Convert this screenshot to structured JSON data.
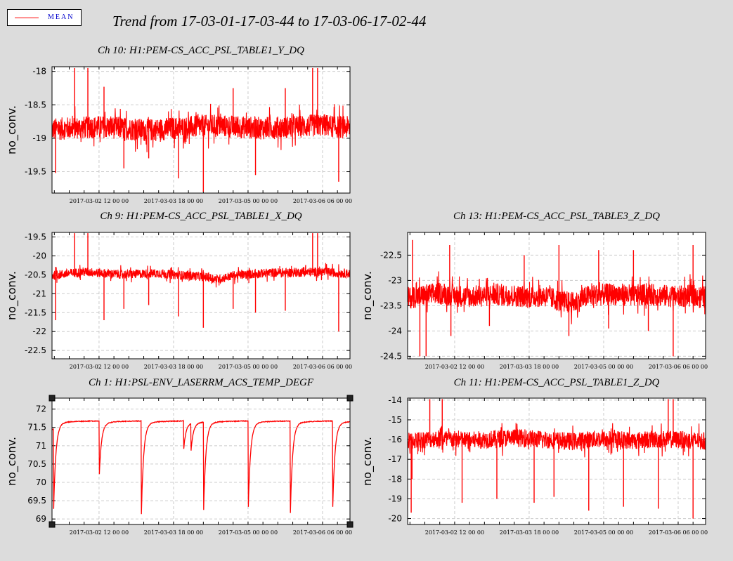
{
  "title": "Trend from 17-03-01-17-03-44 to 17-03-06-17-02-44",
  "legend": {
    "label": "MEAN",
    "color": "#ff0000"
  },
  "colors": {
    "background": "#dcdcdc",
    "plot_background": "#ffffff",
    "trace": "#ff0000",
    "grid": "#cccccc"
  },
  "chart_data": [
    {
      "type": "line",
      "title": "Ch 10: H1:PEM-CS_ACC_PSL_TABLE1_Y_DQ",
      "xlabel": "",
      "ylabel": "no_conv.",
      "x_range": [
        "2017-03-01 17:03:44",
        "2017-03-06 17:02:44"
      ],
      "x_ticks": [
        "2017-03-02 12:00:00",
        "2017-03-03 18:00:00",
        "2017-03-05 00:00:00",
        "2017-03-06 06:00:00"
      ],
      "ylim": [
        -19.82,
        -17.93
      ],
      "y_ticks": [
        -18,
        -18.5,
        -19,
        -19.5
      ],
      "grid": true,
      "series": [
        {
          "name": "MEAN",
          "baseline": -18.87,
          "band_halfwidth": 0.17,
          "x": [
            "2017-03-01 17:03:44",
            "2017-03-01 23:00:00",
            "2017-03-02 06:00:00",
            "2017-03-02 12:00:00",
            "2017-03-02 18:00:00",
            "2017-03-03 00:00:00",
            "2017-03-03 06:00:00",
            "2017-03-03 12:00:00",
            "2017-03-03 18:00:00",
            "2017-03-04 00:00:00",
            "2017-03-04 06:00:00",
            "2017-03-04 12:00:00",
            "2017-03-04 18:00:00",
            "2017-03-05 00:00:00",
            "2017-03-05 06:00:00",
            "2017-03-05 12:00:00",
            "2017-03-05 18:00:00",
            "2017-03-06 00:00:00",
            "2017-03-06 06:00:00",
            "2017-03-06 12:00:00",
            "2017-03-06 17:02:44"
          ],
          "values": [
            -18.87,
            -18.85,
            -18.84,
            -18.83,
            -18.84,
            -18.86,
            -18.88,
            -18.87,
            -18.85,
            -18.84,
            -18.82,
            -18.81,
            -18.83,
            -18.84,
            -18.85,
            -18.84,
            -18.83,
            -18.82,
            -18.8,
            -18.83,
            -18.84
          ],
          "spikes": [
            {
              "x": "2017-03-01 18:30:00",
              "y": -19.52
            },
            {
              "x": "2017-03-02 02:10:00",
              "y": -17.95
            },
            {
              "x": "2017-03-02 07:30:00",
              "y": -17.95
            },
            {
              "x": "2017-03-02 14:00:00",
              "y": -18.23
            },
            {
              "x": "2017-03-02 22:00:00",
              "y": -19.45
            },
            {
              "x": "2017-03-03 08:00:00",
              "y": -19.3
            },
            {
              "x": "2017-03-03 20:00:00",
              "y": -19.6
            },
            {
              "x": "2017-03-04 06:00:00",
              "y": -19.8
            },
            {
              "x": "2017-03-04 18:00:00",
              "y": -18.25
            },
            {
              "x": "2017-03-05 03:00:00",
              "y": -19.55
            },
            {
              "x": "2017-03-05 15:00:00",
              "y": -18.25
            },
            {
              "x": "2017-03-06 02:00:00",
              "y": -17.95
            },
            {
              "x": "2017-03-06 04:00:00",
              "y": -17.95
            },
            {
              "x": "2017-03-06 12:30:00",
              "y": -19.65
            }
          ]
        }
      ]
    },
    {
      "type": "line",
      "title": "Ch 9: H1:PEM-CS_ACC_PSL_TABLE1_X_DQ",
      "xlabel": "",
      "ylabel": "no_conv.",
      "x_range": [
        "2017-03-01 17:03:44",
        "2017-03-06 17:02:44"
      ],
      "x_ticks": [
        "2017-03-02 12:00:00",
        "2017-03-03 18:00:00",
        "2017-03-05 00:00:00",
        "2017-03-06 06:00:00"
      ],
      "ylim": [
        -22.72,
        -19.38
      ],
      "y_ticks": [
        -19.5,
        -20,
        -20.5,
        -21,
        -21.5,
        -22,
        -22.5
      ],
      "grid": true,
      "series": [
        {
          "name": "MEAN",
          "baseline": -20.48,
          "band_halfwidth": 0.12,
          "x": [
            "2017-03-01 17:03:44",
            "2017-03-01 23:00:00",
            "2017-03-02 06:00:00",
            "2017-03-02 12:00:00",
            "2017-03-02 18:00:00",
            "2017-03-03 00:00:00",
            "2017-03-03 06:00:00",
            "2017-03-03 12:00:00",
            "2017-03-03 18:00:00",
            "2017-03-04 00:00:00",
            "2017-03-04 06:00:00",
            "2017-03-04 12:00:00",
            "2017-03-04 18:00:00",
            "2017-03-05 00:00:00",
            "2017-03-05 06:00:00",
            "2017-03-05 12:00:00",
            "2017-03-05 18:00:00",
            "2017-03-06 00:00:00",
            "2017-03-06 06:00:00",
            "2017-03-06 12:00:00",
            "2017-03-06 17:02:44"
          ],
          "values": [
            -20.52,
            -20.47,
            -20.42,
            -20.45,
            -20.48,
            -20.49,
            -20.47,
            -20.46,
            -20.5,
            -20.52,
            -20.55,
            -20.62,
            -20.52,
            -20.49,
            -20.46,
            -20.44,
            -20.44,
            -20.43,
            -20.42,
            -20.45,
            -20.47
          ],
          "spikes": [
            {
              "x": "2017-03-01 18:30:00",
              "y": -21.7
            },
            {
              "x": "2017-03-02 02:10:00",
              "y": -19.4
            },
            {
              "x": "2017-03-02 07:30:00",
              "y": -19.4
            },
            {
              "x": "2017-03-02 14:00:00",
              "y": -21.7
            },
            {
              "x": "2017-03-02 22:00:00",
              "y": -21.4
            },
            {
              "x": "2017-03-03 08:00:00",
              "y": -21.3
            },
            {
              "x": "2017-03-03 20:00:00",
              "y": -21.6
            },
            {
              "x": "2017-03-04 06:00:00",
              "y": -21.9
            },
            {
              "x": "2017-03-04 18:00:00",
              "y": -21.4
            },
            {
              "x": "2017-03-05 03:00:00",
              "y": -21.5
            },
            {
              "x": "2017-03-05 15:00:00",
              "y": -21.45
            },
            {
              "x": "2017-03-06 02:00:00",
              "y": -19.4
            },
            {
              "x": "2017-03-06 04:00:00",
              "y": -19.4
            },
            {
              "x": "2017-03-06 12:30:00",
              "y": -22.0
            }
          ]
        }
      ]
    },
    {
      "type": "line",
      "title": "Ch 13: H1:PEM-CS_ACC_PSL_TABLE3_Z_DQ",
      "xlabel": "",
      "ylabel": "no_conv.",
      "x_range": [
        "2017-03-01 17:03:44",
        "2017-03-06 17:02:44"
      ],
      "x_ticks": [
        "2017-03-02 12:00:00",
        "2017-03-03 18:00:00",
        "2017-03-05 00:00:00",
        "2017-03-06 06:00:00"
      ],
      "ylim": [
        -24.55,
        -22.05
      ],
      "y_ticks": [
        -22.5,
        -23,
        -23.5,
        -24,
        -24.5
      ],
      "grid": true,
      "series": [
        {
          "name": "MEAN",
          "baseline": -23.3,
          "band_halfwidth": 0.22,
          "x": [
            "2017-03-01 17:03:44",
            "2017-03-01 23:00:00",
            "2017-03-02 06:00:00",
            "2017-03-02 12:00:00",
            "2017-03-02 18:00:00",
            "2017-03-03 00:00:00",
            "2017-03-03 06:00:00",
            "2017-03-03 12:00:00",
            "2017-03-03 18:00:00",
            "2017-03-04 00:00:00",
            "2017-03-04 06:00:00",
            "2017-03-04 12:00:00",
            "2017-03-04 18:00:00",
            "2017-03-05 00:00:00",
            "2017-03-05 06:00:00",
            "2017-03-05 12:00:00",
            "2017-03-05 18:00:00",
            "2017-03-06 00:00:00",
            "2017-03-06 06:00:00",
            "2017-03-06 12:00:00",
            "2017-03-06 17:02:44"
          ],
          "values": [
            -23.35,
            -23.3,
            -23.25,
            -23.3,
            -23.32,
            -23.3,
            -23.28,
            -23.3,
            -23.33,
            -23.3,
            -23.4,
            -23.45,
            -23.3,
            -23.28,
            -23.27,
            -23.3,
            -23.28,
            -23.3,
            -23.32,
            -23.3,
            -23.33
          ],
          "spikes": [
            {
              "x": "2017-03-01 19:00:00",
              "y": -22.2
            },
            {
              "x": "2017-03-01 22:00:00",
              "y": -24.5
            },
            {
              "x": "2017-03-02 00:30:00",
              "y": -24.5
            },
            {
              "x": "2017-03-02 10:00:00",
              "y": -22.3
            },
            {
              "x": "2017-03-02 10:30:00",
              "y": -24.1
            },
            {
              "x": "2017-03-03 02:00:00",
              "y": -23.9
            },
            {
              "x": "2017-03-03 16:00:00",
              "y": -22.5
            },
            {
              "x": "2017-03-04 06:00:00",
              "y": -22.3
            },
            {
              "x": "2017-03-04 10:00:00",
              "y": -24.1
            },
            {
              "x": "2017-03-04 22:00:00",
              "y": -22.4
            },
            {
              "x": "2017-03-05 02:00:00",
              "y": -23.95
            },
            {
              "x": "2017-03-05 12:00:00",
              "y": -22.4
            },
            {
              "x": "2017-03-05 18:00:00",
              "y": -24.0
            },
            {
              "x": "2017-03-06 04:00:00",
              "y": -24.5
            },
            {
              "x": "2017-03-06 12:00:00",
              "y": -22.3
            }
          ]
        }
      ]
    },
    {
      "type": "line",
      "title": "Ch 1: H1:PSL-ENV_LASERRM_ACS_TEMP_DEGF",
      "xlabel": "",
      "ylabel": "no_conv.",
      "x_range": [
        "2017-03-01 17:03:44",
        "2017-03-06 17:02:44"
      ],
      "x_ticks": [
        "2017-03-02 12:00:00",
        "2017-03-03 18:00:00",
        "2017-03-05 00:00:00",
        "2017-03-06 06:00:00"
      ],
      "ylim": [
        68.85,
        72.3
      ],
      "y_ticks": [
        72,
        71.5,
        71,
        70.5,
        70,
        69.5,
        69
      ],
      "grid": true,
      "series": [
        {
          "name": "MEAN",
          "baseline": 71.68,
          "band_halfwidth": 0.0,
          "profile": "recovery",
          "drops": [
            {
              "x": "2017-03-01 17:40:00",
              "y": 69.2
            },
            {
              "x": "2017-03-02 12:00:00",
              "y": 70.1
            },
            {
              "x": "2017-03-03 05:00:00",
              "y": 69.05
            },
            {
              "x": "2017-03-03 22:00:00",
              "y": 70.9
            },
            {
              "x": "2017-03-04 01:00:00",
              "y": 70.9
            },
            {
              "x": "2017-03-04 06:00:00",
              "y": 69.0
            },
            {
              "x": "2017-03-05 00:00:00",
              "y": 69.1
            },
            {
              "x": "2017-03-05 17:00:00",
              "y": 69.1
            },
            {
              "x": "2017-03-06 10:00:00",
              "y": 69.1
            }
          ]
        }
      ]
    },
    {
      "type": "line",
      "title": "Ch 11: H1:PEM-CS_ACC_PSL_TABLE1_Z_DQ",
      "xlabel": "",
      "ylabel": "no_conv.",
      "x_range": [
        "2017-03-01 17:03:44",
        "2017-03-06 17:02:44"
      ],
      "x_ticks": [
        "2017-03-02 12:00:00",
        "2017-03-03 18:00:00",
        "2017-03-05 00:00:00",
        "2017-03-06 06:00:00"
      ],
      "ylim": [
        -20.3,
        -13.9
      ],
      "y_ticks": [
        -14,
        -15,
        -16,
        -17,
        -18,
        -19,
        -20
      ],
      "grid": true,
      "series": [
        {
          "name": "MEAN",
          "baseline": -16.05,
          "band_halfwidth": 0.45,
          "x": [
            "2017-03-01 17:03:44",
            "2017-03-01 23:00:00",
            "2017-03-02 06:00:00",
            "2017-03-02 12:00:00",
            "2017-03-02 18:00:00",
            "2017-03-03 00:00:00",
            "2017-03-03 06:00:00",
            "2017-03-03 12:00:00",
            "2017-03-03 18:00:00",
            "2017-03-04 00:00:00",
            "2017-03-04 06:00:00",
            "2017-03-04 12:00:00",
            "2017-03-04 18:00:00",
            "2017-03-05 00:00:00",
            "2017-03-05 06:00:00",
            "2017-03-05 12:00:00",
            "2017-03-05 18:00:00",
            "2017-03-06 00:00:00",
            "2017-03-06 06:00:00",
            "2017-03-06 12:00:00",
            "2017-03-06 17:02:44"
          ],
          "values": [
            -16.1,
            -16.0,
            -15.95,
            -16.0,
            -16.05,
            -16.0,
            -15.95,
            -15.9,
            -15.95,
            -16.0,
            -16.05,
            -16.1,
            -16.0,
            -15.98,
            -16.0,
            -16.05,
            -16.0,
            -15.98,
            -16.0,
            -16.05,
            -16.1
          ],
          "spikes": [
            {
              "x": "2017-03-01 18:30:00",
              "y": -19.7
            },
            {
              "x": "2017-03-01 18:50:00",
              "y": -18.0
            },
            {
              "x": "2017-03-02 02:00:00",
              "y": -13.95
            },
            {
              "x": "2017-03-02 07:00:00",
              "y": -13.95
            },
            {
              "x": "2017-03-02 15:00:00",
              "y": -19.2
            },
            {
              "x": "2017-03-03 05:00:00",
              "y": -19.0
            },
            {
              "x": "2017-03-03 20:00:00",
              "y": -19.2
            },
            {
              "x": "2017-03-04 04:00:00",
              "y": -18.9
            },
            {
              "x": "2017-03-04 18:00:00",
              "y": -19.6
            },
            {
              "x": "2017-03-05 08:00:00",
              "y": -19.4
            },
            {
              "x": "2017-03-05 22:00:00",
              "y": -19.5
            },
            {
              "x": "2017-03-06 02:00:00",
              "y": -13.95
            },
            {
              "x": "2017-03-06 04:00:00",
              "y": -13.95
            },
            {
              "x": "2017-03-06 12:00:00",
              "y": -20.0
            }
          ]
        }
      ]
    }
  ]
}
